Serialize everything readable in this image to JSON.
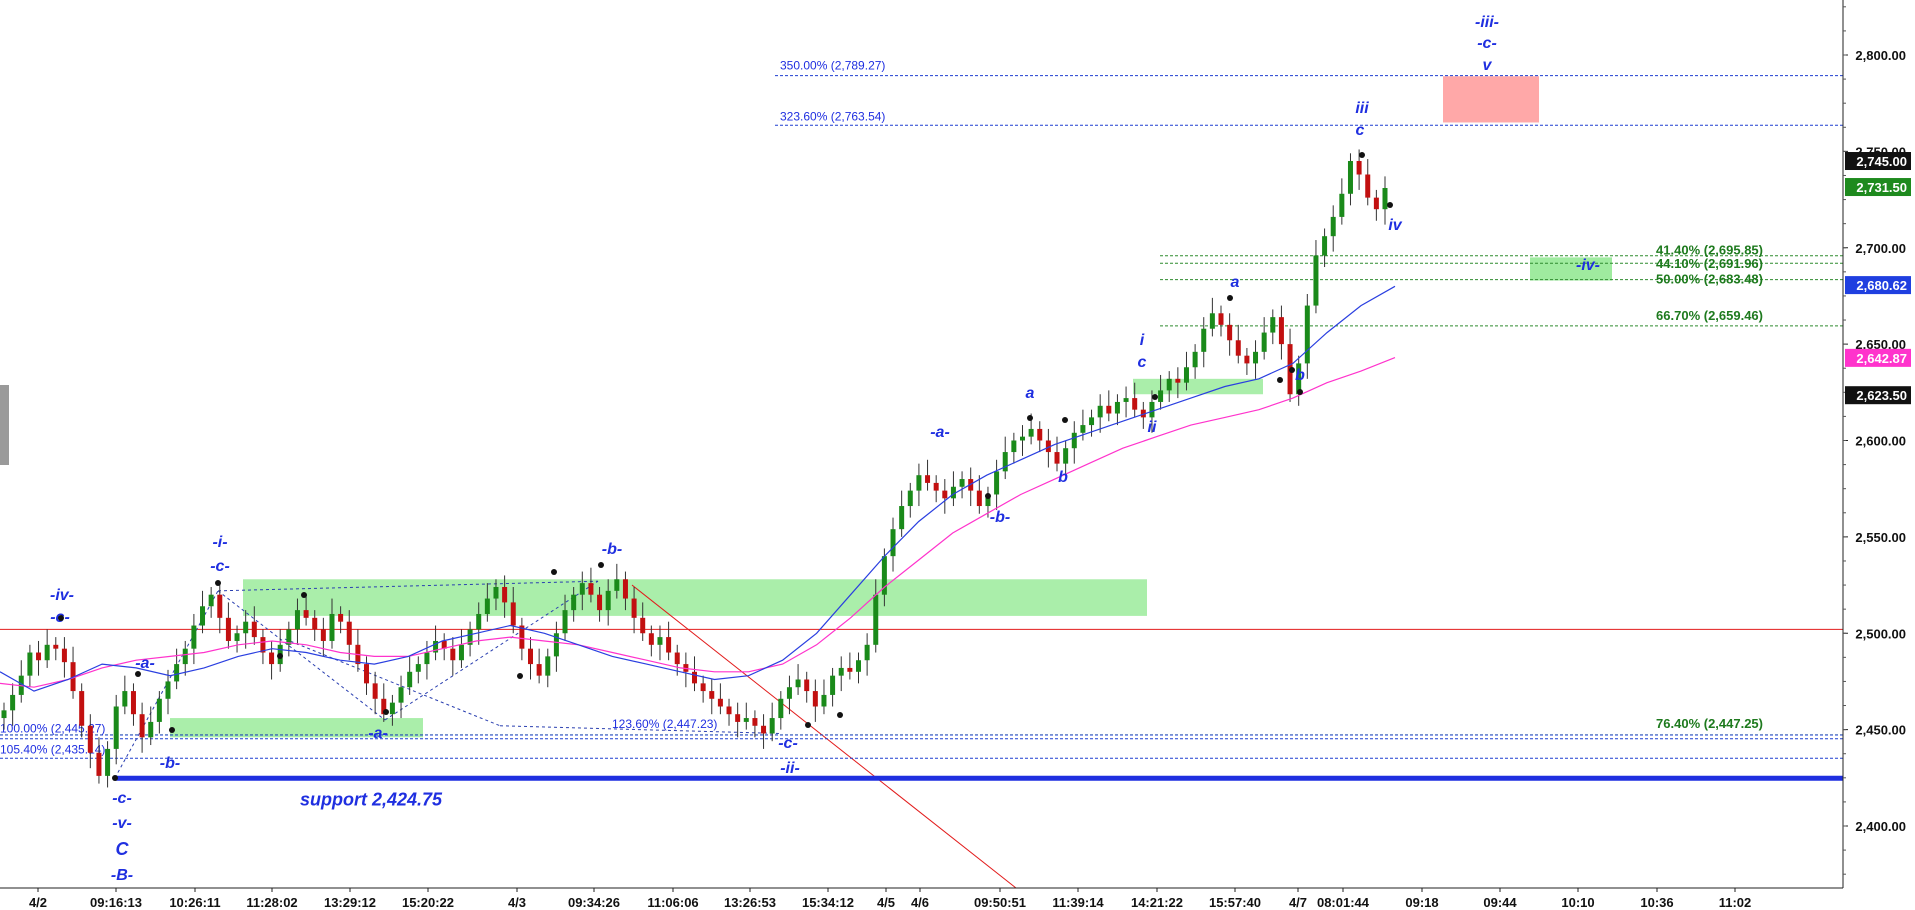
{
  "chart_data": {
    "type": "candlestick",
    "y_range": [
      2370,
      2840
    ],
    "y_ticks": [
      {
        "value": 2400,
        "label": "2,400.00"
      },
      {
        "value": 2450,
        "label": "2,450.00"
      },
      {
        "value": 2500,
        "label": "2,500.00"
      },
      {
        "value": 2550,
        "label": "2,550.00"
      },
      {
        "value": 2600,
        "label": "2,600.00"
      },
      {
        "value": 2650,
        "label": "2,650.00"
      },
      {
        "value": 2700,
        "label": "2,700.00"
      },
      {
        "value": 2750,
        "label": "2,750.00"
      },
      {
        "value": 2800,
        "label": "2,800.00"
      }
    ],
    "x_labels": [
      "4/2",
      "09:16:13",
      "10:26:11",
      "11:28:02",
      "13:29:12",
      "15:20:22",
      "4/3",
      "09:34:26",
      "11:06:06",
      "13:26:53",
      "15:34:12",
      "4/5",
      "4/6",
      "09:50:51",
      "11:39:14",
      "14:21:22",
      "15:57:40",
      "4/7",
      "08:01:44",
      "09:18",
      "09:44",
      "10:10",
      "10:36",
      "11:02"
    ],
    "x_bold_labels": [
      "4/2",
      "09:16:13",
      "10:26:11",
      "11:28:02",
      "13:29:12",
      "15:20:22",
      "4/3",
      "09:34:26",
      "11:06:06",
      "13:26:53",
      "15:34:12",
      "4/5",
      "4/6",
      "09:50:51",
      "11:39:14",
      "14:21:22",
      "15:57:40",
      "4/7",
      "08:01:44",
      "09:18",
      "09:44",
      "10:10",
      "10:36",
      "11:02"
    ],
    "price_badges": [
      {
        "value": 2745.0,
        "label": "2,745.00",
        "color": "#111111"
      },
      {
        "value": 2731.5,
        "label": "2,731.50",
        "color": "#1e8a1e"
      },
      {
        "value": 2680.62,
        "label": "2,680.62",
        "color": "#1f3fe0"
      },
      {
        "value": 2642.87,
        "label": "2,642.87",
        "color": "#ff33cc"
      },
      {
        "value": 2623.5,
        "label": "2,623.50",
        "color": "#111111"
      }
    ],
    "levels": [
      {
        "value": 2789.27,
        "label": "350.00% (2,789.27)",
        "color": "#1f3fd0"
      },
      {
        "value": 2763.54,
        "label": "323.60% (2,763.54)",
        "color": "#1f3fd0"
      },
      {
        "value": 2695.85,
        "label": "41.40% (2,695.85)",
        "color": "#2e8b2e"
      },
      {
        "value": 2691.96,
        "label": "44.10% (2,691.96)",
        "color": "#2e8b2e"
      },
      {
        "value": 2683.48,
        "label": "50.00% (2,683.48)",
        "color": "#2e8b2e"
      },
      {
        "value": 2659.46,
        "label": "66.70% (2,659.46)",
        "color": "#2e8b2e"
      },
      {
        "value": 2447.25,
        "label": "76.40% (2,447.25)",
        "color": "#2e8b2e"
      },
      {
        "value": 2447.23,
        "label": "123.60% (2,447.23)",
        "color": "#1f3fd0"
      },
      {
        "value": 2445.27,
        "label": "100.00% (2,445.27)",
        "color": "#1f3fd0"
      },
      {
        "value": 2435.14,
        "label": "105.40% (2,435.14)",
        "color": "#1f3fd0"
      }
    ],
    "support": {
      "value": 2424.75,
      "label": "support 2,424.75"
    },
    "red_hline": 2502,
    "wave_labels": [
      {
        "text": "-iii-"
      },
      {
        "text": "-c-"
      },
      {
        "text": "v"
      },
      {
        "text": "iii"
      },
      {
        "text": "c"
      },
      {
        "text": "iv"
      },
      {
        "text": "-iv-"
      },
      {
        "text": "a"
      },
      {
        "text": "b"
      },
      {
        "text": "i"
      },
      {
        "text": "c"
      },
      {
        "text": "ii"
      },
      {
        "text": "a"
      },
      {
        "text": "b"
      },
      {
        "text": "-a-"
      },
      {
        "text": "-b-"
      },
      {
        "text": "-i-"
      },
      {
        "text": "-c-"
      },
      {
        "text": "-b-"
      },
      {
        "text": "-iv-"
      },
      {
        "text": "-c-"
      },
      {
        "text": "-a-"
      },
      {
        "text": "-b-"
      },
      {
        "text": "-a-"
      },
      {
        "text": "-c-"
      },
      {
        "text": "-ii-"
      },
      {
        "text": "-c-"
      },
      {
        "text": "-v-"
      },
      {
        "text": "C"
      },
      {
        "text": "-B-"
      }
    ],
    "series_close": [
      2460,
      2468,
      2478,
      2490,
      2486,
      2494,
      2492,
      2485,
      2470,
      2452,
      2438,
      2426,
      2440,
      2462,
      2470,
      2458,
      2446,
      2454,
      2466,
      2475,
      2484,
      2492,
      2504,
      2514,
      2520,
      2508,
      2496,
      2500,
      2506,
      2498,
      2490,
      2484,
      2494,
      2502,
      2512,
      2508,
      2502,
      2496,
      2510,
      2506,
      2494,
      2484,
      2474,
      2466,
      2458,
      2464,
      2472,
      2480,
      2484,
      2490,
      2496,
      2492,
      2486,
      2494,
      2502,
      2510,
      2518,
      2524,
      2516,
      2504,
      2492,
      2484,
      2478,
      2488,
      2500,
      2512,
      2520,
      2526,
      2520,
      2512,
      2522,
      2528,
      2518,
      2508,
      2500,
      2494,
      2498,
      2490,
      2484,
      2480,
      2474,
      2470,
      2466,
      2462,
      2458,
      2454,
      2456,
      2452,
      2448,
      2456,
      2466,
      2472,
      2476,
      2470,
      2462,
      2468,
      2478,
      2482,
      2480,
      2486,
      2494,
      2520,
      2540,
      2554,
      2566,
      2574,
      2582,
      2578,
      2574,
      2570,
      2576,
      2580,
      2574,
      2566,
      2572,
      2584,
      2594,
      2600,
      2602,
      2606,
      2600,
      2594,
      2588,
      2596,
      2604,
      2608,
      2612,
      2618,
      2614,
      2620,
      2622,
      2616,
      2612,
      2620,
      2626,
      2632,
      2630,
      2638,
      2646,
      2658,
      2666,
      2660,
      2652,
      2644,
      2640,
      2646,
      2656,
      2664,
      2650,
      2624,
      2640,
      2670,
      2696,
      2706,
      2716,
      2728,
      2745,
      2738,
      2726,
      2720,
      2731
    ],
    "ma_blue": [
      2480,
      2470,
      2476,
      2484,
      2482,
      2478,
      2482,
      2488,
      2492,
      2490,
      2486,
      2484,
      2488,
      2496,
      2500,
      2504,
      2500,
      2494,
      2488,
      2484,
      2480,
      2476,
      2478,
      2486,
      2500,
      2520,
      2540,
      2558,
      2572,
      2582,
      2590,
      2598,
      2604,
      2610,
      2616,
      2622,
      2628,
      2632,
      2640,
      2656,
      2670,
      2680
    ],
    "ma_pink": [
      2474,
      2472,
      2476,
      2482,
      2486,
      2488,
      2490,
      2494,
      2496,
      2494,
      2490,
      2488,
      2488,
      2492,
      2496,
      2498,
      2496,
      2494,
      2490,
      2486,
      2482,
      2480,
      2480,
      2484,
      2494,
      2508,
      2524,
      2538,
      2552,
      2562,
      2572,
      2580,
      2588,
      2596,
      2602,
      2608,
      2612,
      2616,
      2622,
      2630,
      2636,
      2643
    ]
  },
  "colors": {
    "up_candle": "#1a8a1a",
    "down_candle": "#c21010",
    "blue_line": "#2a3fe0",
    "pink_line": "#ff33cc",
    "support_line": "#1f2fe0",
    "red_line": "#e21b1b",
    "zone_green": "#8ee88e",
    "zone_red": "#ff9e9e"
  }
}
